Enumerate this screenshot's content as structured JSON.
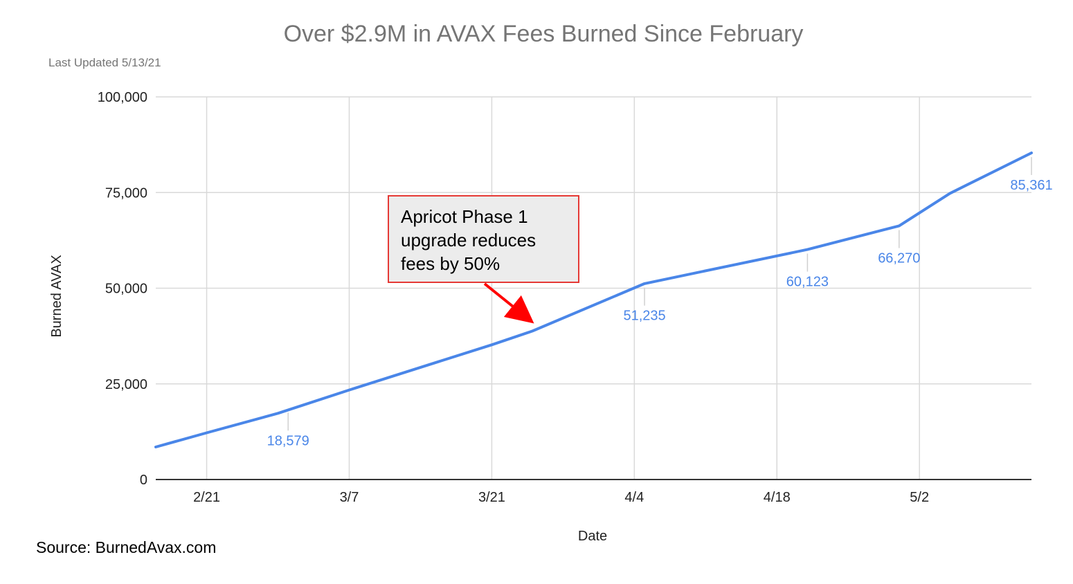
{
  "chart_data": {
    "type": "line",
    "title": "Over $2.9M in AVAX Fees Burned Since February",
    "subtitle": "Last Updated 5/13/21",
    "xlabel": "Date",
    "ylabel": "Burned AVAX",
    "x_ticks": [
      "2/21",
      "3/7",
      "3/21",
      "4/4",
      "4/18",
      "5/2"
    ],
    "y_ticks": [
      "0",
      "25,000",
      "50,000",
      "75,000",
      "100,000"
    ],
    "ylim": [
      0,
      100000
    ],
    "xlim": [
      "2021-02-16",
      "2021-05-13"
    ],
    "grid": true,
    "color": "#4a86e8",
    "series": [
      {
        "name": "",
        "points": [
          {
            "x": "2021-02-16",
            "y": 8500
          },
          {
            "x": "2021-02-21",
            "y": 12200
          },
          {
            "x": "2021-02-28",
            "y": 17300
          },
          {
            "x": "2021-03-07",
            "y": 23400
          },
          {
            "x": "2021-03-21",
            "y": 35200
          },
          {
            "x": "2021-03-25",
            "y": 38800
          },
          {
            "x": "2021-04-05",
            "y": 51200
          },
          {
            "x": "2021-04-21",
            "y": 60100
          },
          {
            "x": "2021-04-30",
            "y": 66300
          },
          {
            "x": "2021-05-05",
            "y": 74800
          },
          {
            "x": "2021-05-13",
            "y": 85361
          }
        ]
      }
    ],
    "data_labels": [
      {
        "x": "2021-03-01",
        "y": 18579,
        "text": "18,579"
      },
      {
        "x": "2021-04-05",
        "y": 51235,
        "text": "51,235"
      },
      {
        "x": "2021-04-21",
        "y": 60123,
        "text": "60,123"
      },
      {
        "x": "2021-04-30",
        "y": 66270,
        "text": "66,270"
      },
      {
        "x": "2021-05-13",
        "y": 85361,
        "text": "85,361"
      }
    ],
    "annotation": {
      "lines": [
        "Apricot Phase 1",
        "upgrade reduces",
        "fees by 50%"
      ],
      "x": "2021-03-25",
      "y": 38800,
      "border_color": "#e53935",
      "fill_color": "#ececec",
      "arrow_color": "#ff0000"
    },
    "source": "Source: BurnedAvax.com"
  }
}
